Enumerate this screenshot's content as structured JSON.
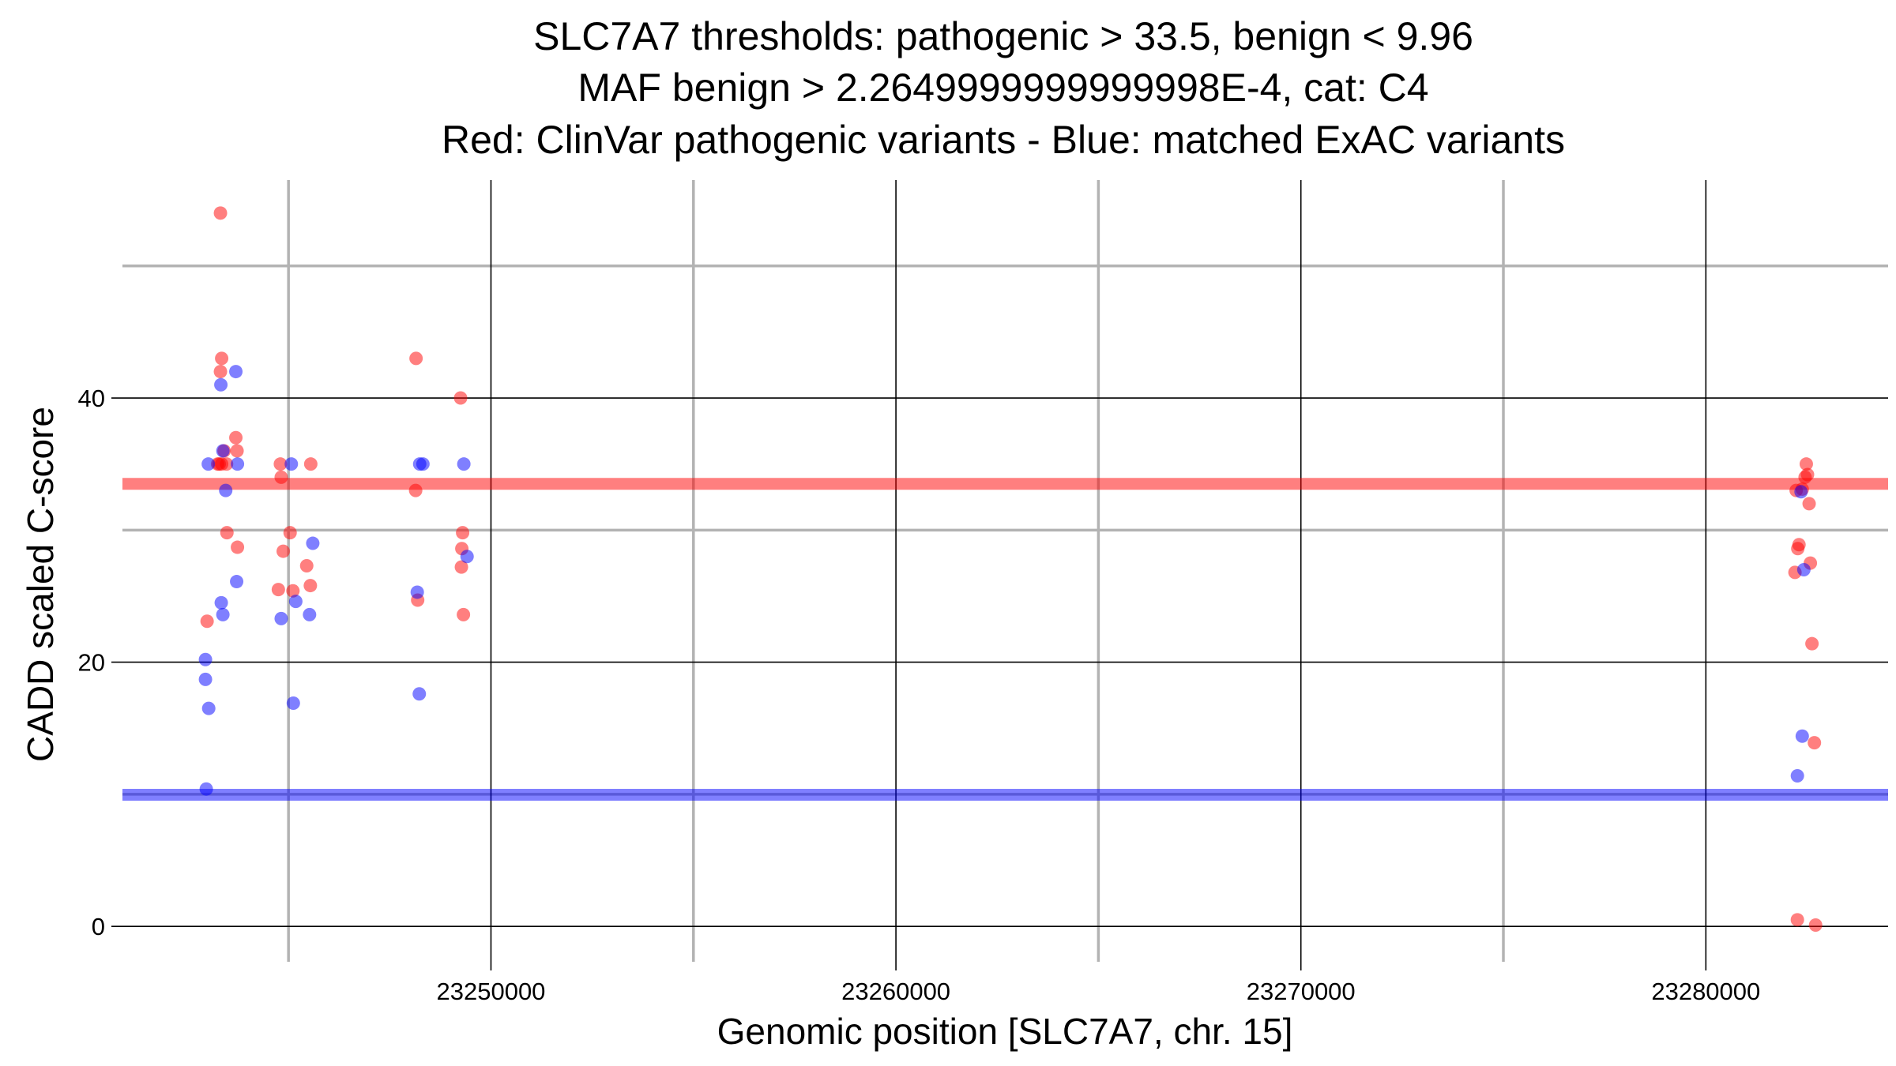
{
  "chart_data": {
    "type": "scatter",
    "title_lines": [
      "SLC7A7 thresholds: pathogenic > 33.5, benign < 9.96",
      "MAF benign > 2.2649999999999998E-4, cat: C4",
      "Red: ClinVar pathogenic variants - Blue: matched ExAC variants"
    ],
    "xlabel": "Genomic position [SLC7A7, chr. 15]",
    "ylabel": "CADD scaled C-score",
    "xlim": [
      23240900,
      23284500
    ],
    "ylim": [
      -2.5,
      56.5
    ],
    "x_major_ticks": [
      23250000,
      23260000,
      23270000,
      23280000
    ],
    "x_tick_labels": [
      "23250000",
      "23260000",
      "23270000",
      "23280000"
    ],
    "x_minor_gridlines": [
      23245000,
      23255000,
      23265000,
      23275000
    ],
    "y_major_ticks": [
      0,
      20,
      40
    ],
    "y_tick_labels": [
      "0",
      "20",
      "40"
    ],
    "y_minor_gridlines": [
      10,
      30,
      50
    ],
    "thresholds": [
      {
        "name": "pathogenic",
        "value": 33.5,
        "color": "#ff0000"
      },
      {
        "name": "benign",
        "value": 9.96,
        "color": "#0000ff"
      }
    ],
    "series": [
      {
        "name": "ClinVar pathogenic variants",
        "color": "#ff0000",
        "points": [
          [
            23243320,
            54
          ],
          [
            23243350,
            43
          ],
          [
            23243320,
            42
          ],
          [
            23243250,
            35
          ],
          [
            23243290,
            35
          ],
          [
            23243350,
            35
          ],
          [
            23243410,
            36
          ],
          [
            23243470,
            35
          ],
          [
            23243700,
            37
          ],
          [
            23243730,
            36
          ],
          [
            23243480,
            29.8
          ],
          [
            23243740,
            28.7
          ],
          [
            23242990,
            23.1
          ],
          [
            23244800,
            35
          ],
          [
            23244820,
            34
          ],
          [
            23244870,
            28.4
          ],
          [
            23244750,
            25.5
          ],
          [
            23245040,
            29.8
          ],
          [
            23245110,
            25.4
          ],
          [
            23245550,
            35
          ],
          [
            23245450,
            27.3
          ],
          [
            23245540,
            25.8
          ],
          [
            23248150,
            43
          ],
          [
            23248140,
            33
          ],
          [
            23248190,
            24.7
          ],
          [
            23249250,
            40
          ],
          [
            23249300,
            29.8
          ],
          [
            23249280,
            28.6
          ],
          [
            23249270,
            27.2
          ],
          [
            23249320,
            23.6
          ],
          [
            23282230,
            33
          ],
          [
            23282480,
            35
          ],
          [
            23282450,
            34
          ],
          [
            23282510,
            34.2
          ],
          [
            23282380,
            33.1
          ],
          [
            23282550,
            32
          ],
          [
            23282300,
            28.9
          ],
          [
            23282270,
            28.6
          ],
          [
            23282200,
            26.8
          ],
          [
            23282580,
            27.5
          ],
          [
            23282620,
            21.4
          ],
          [
            23282680,
            13.9
          ],
          [
            23282260,
            0.5
          ],
          [
            23282710,
            0.1
          ]
        ]
      },
      {
        "name": "matched ExAC variants",
        "color": "#0000ff",
        "points": [
          [
            23243020,
            35
          ],
          [
            23243330,
            41
          ],
          [
            23243700,
            42
          ],
          [
            23243380,
            36
          ],
          [
            23243740,
            35
          ],
          [
            23243450,
            33
          ],
          [
            23243340,
            24.5
          ],
          [
            23243380,
            23.6
          ],
          [
            23243720,
            26.1
          ],
          [
            23242950,
            20.2
          ],
          [
            23242950,
            18.7
          ],
          [
            23243030,
            16.5
          ],
          [
            23242970,
            10.4
          ],
          [
            23245070,
            35
          ],
          [
            23245600,
            29
          ],
          [
            23244820,
            23.3
          ],
          [
            23245180,
            24.6
          ],
          [
            23245520,
            23.6
          ],
          [
            23245120,
            16.9
          ],
          [
            23248240,
            35
          ],
          [
            23248320,
            35
          ],
          [
            23248180,
            25.3
          ],
          [
            23248230,
            17.6
          ],
          [
            23249330,
            35
          ],
          [
            23249410,
            28
          ],
          [
            23282350,
            32.9
          ],
          [
            23282420,
            27
          ],
          [
            23282380,
            14.4
          ],
          [
            23282260,
            11.4
          ]
        ]
      }
    ]
  }
}
